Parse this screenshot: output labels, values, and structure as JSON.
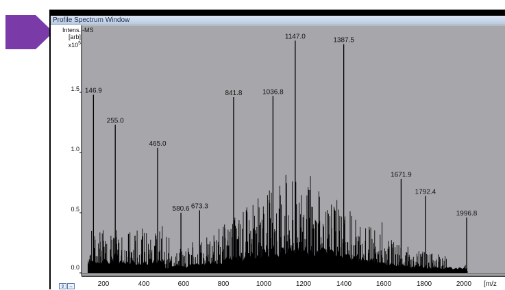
{
  "window": {
    "title": "Profile Spectrum Window"
  },
  "axis": {
    "y_label_line1": "Intens.",
    "y_label_line2": "[arb]",
    "y_scale": "x10",
    "y_scale_exp": "5",
    "x_unit": "[m/z"
  },
  "mode_label": "-MS",
  "icons": {
    "pointer": "arrow-pointer-icon",
    "scroll_up_down": "updown-arrows-icon",
    "scroll_left_right": "leftright-arrows-icon"
  },
  "colors": {
    "plot_background": "#a7a6aa",
    "trace": "#000000",
    "accent_arrow": "#7a3aa8"
  },
  "chart_data": {
    "type": "line",
    "xlabel": "[m/z",
    "ylabel": "Intens. [arb]",
    "y_multiplier": "x10^5",
    "xlim": [
      100,
      2100
    ],
    "ylim": [
      0,
      1.9
    ],
    "x_ticks": [
      "200",
      "400",
      "600",
      "800",
      "1000",
      "1200",
      "1400",
      "1600",
      "1800",
      "2000"
    ],
    "y_ticks": [
      "0.0",
      "0.5",
      "1.0",
      "1.5"
    ],
    "labeled_peaks": [
      {
        "mz": 146.9,
        "intensity": 1.48,
        "label": "146.9"
      },
      {
        "mz": 255.0,
        "intensity": 1.23,
        "label": "255.0"
      },
      {
        "mz": 465.0,
        "intensity": 1.04,
        "label": "465.0"
      },
      {
        "mz": 580.6,
        "intensity": 0.5,
        "label": "580.6"
      },
      {
        "mz": 673.3,
        "intensity": 0.52,
        "label": "673.3"
      },
      {
        "mz": 841.8,
        "intensity": 1.46,
        "label": "841.8"
      },
      {
        "mz": 1036.8,
        "intensity": 1.47,
        "label": "1036.8"
      },
      {
        "mz": 1147.0,
        "intensity": 1.93,
        "label": "1147.0"
      },
      {
        "mz": 1387.5,
        "intensity": 1.9,
        "label": "1387.5"
      },
      {
        "mz": 1671.9,
        "intensity": 0.78,
        "label": "1671.9"
      },
      {
        "mz": 1792.4,
        "intensity": 0.64,
        "label": "1792.4"
      },
      {
        "mz": 1996.8,
        "intensity": 0.46,
        "label": "1996.8"
      }
    ]
  }
}
